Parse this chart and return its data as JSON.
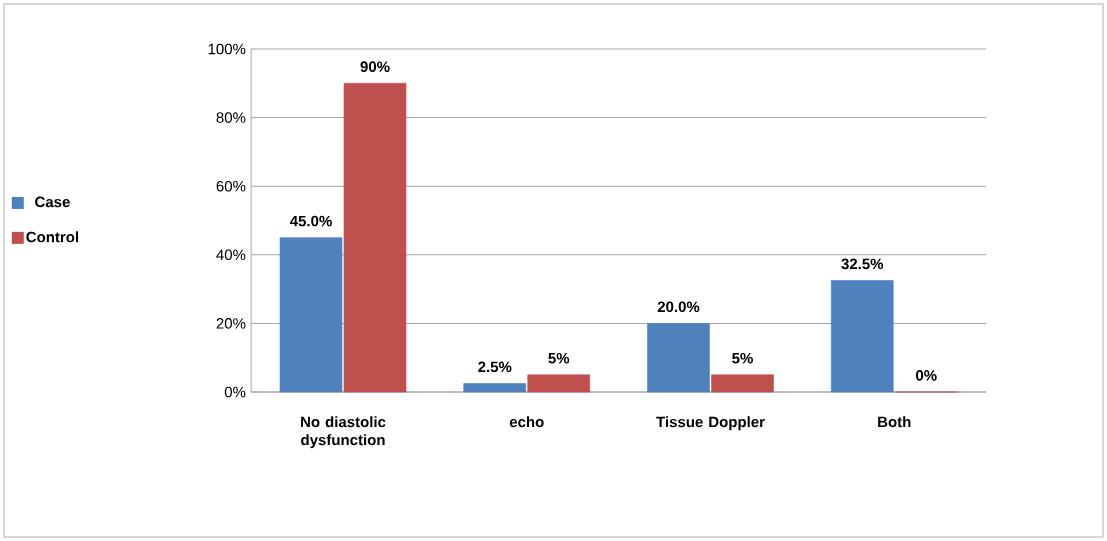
{
  "chart_data": {
    "type": "bar",
    "categories": [
      "No diastolic dysfunction",
      "echo",
      "Tissue Doppler",
      "Both"
    ],
    "series": [
      {
        "name": "Case",
        "color": "#4f81bd",
        "values": [
          45.0,
          2.5,
          20.0,
          32.5
        ],
        "value_labels": [
          "45.0%",
          "2.5%",
          "20.0%",
          "32.5%"
        ]
      },
      {
        "name": "Control",
        "color": "#c0504d",
        "values": [
          90,
          5,
          5,
          0
        ],
        "value_labels": [
          "90%",
          "5%",
          "5%",
          "0%"
        ]
      }
    ],
    "ylim": [
      0,
      100
    ],
    "yticks": [
      {
        "value": 0,
        "label": "0%"
      },
      {
        "value": 20,
        "label": "20%"
      },
      {
        "value": 40,
        "label": "40%"
      },
      {
        "value": 60,
        "label": "60%"
      },
      {
        "value": 80,
        "label": "80%"
      },
      {
        "value": 100,
        "label": "100%"
      }
    ],
    "grid": "y",
    "legend": "left"
  }
}
